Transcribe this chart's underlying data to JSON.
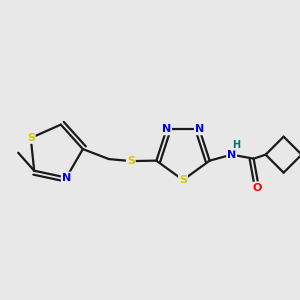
{
  "background_color": "#e8e8e8",
  "bond_color": "#1a1a1a",
  "atom_colors": {
    "S": "#cccc00",
    "N": "#0000ee",
    "O": "#ff0000",
    "H": "#007070",
    "C": "#1a1a1a"
  },
  "bond_width": 1.6,
  "dbo": 0.007,
  "figsize": [
    3.0,
    3.0
  ],
  "dpi": 100
}
